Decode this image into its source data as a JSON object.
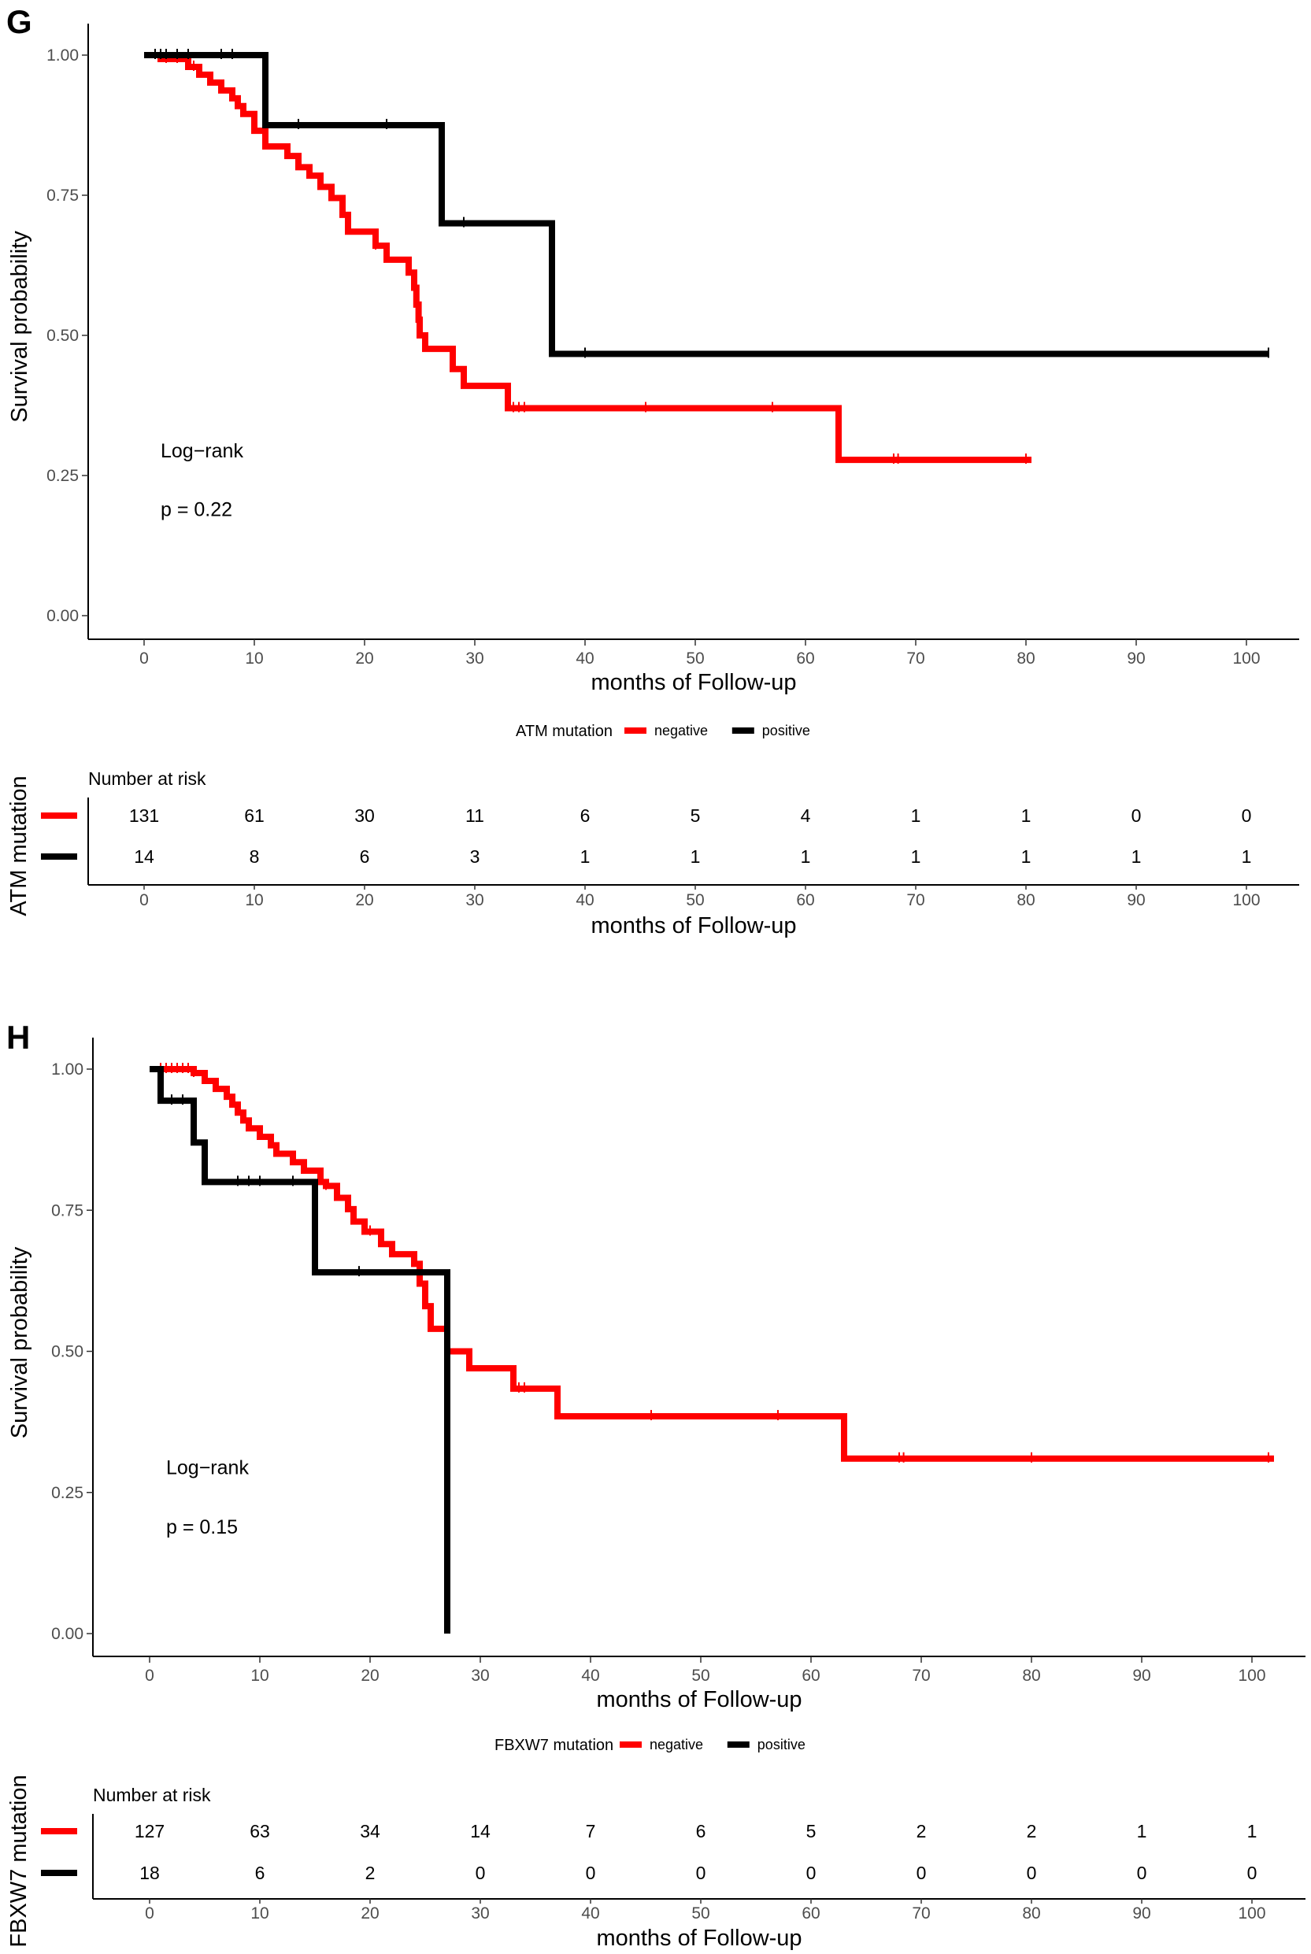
{
  "chart_data": [
    {
      "panel_label": "G",
      "type": "kaplan-meier",
      "xlabel": "months of Follow-up",
      "ylabel": "Survival probability",
      "xlim": [
        -5,
        105
      ],
      "ylim": [
        0,
        1
      ],
      "xticks": [
        0,
        10,
        20,
        30,
        40,
        50,
        60,
        70,
        80,
        90,
        100
      ],
      "yticks": [
        "0.00",
        "0.25",
        "0.50",
        "0.75",
        "1.00"
      ],
      "annotation": {
        "line1": "Log−rank",
        "line2": "p = 0.22"
      },
      "legend": {
        "title": "ATM mutation",
        "items": [
          "negative",
          "positive"
        ]
      },
      "risk_table": {
        "title": "Number at risk",
        "ylabel": "ATM mutation",
        "xlabel": "months of Follow-up",
        "rows": [
          [
            "131",
            "61",
            "30",
            "11",
            "6",
            "5",
            "4",
            "1",
            "1",
            "0",
            "0"
          ],
          [
            "14",
            "8",
            "6",
            "3",
            "1",
            "1",
            "1",
            "1",
            "1",
            "1",
            "1"
          ]
        ]
      },
      "series": [
        {
          "name": "negative",
          "color": "#ff0000",
          "steps": [
            [
              0,
              1.0
            ],
            [
              1.5,
              0.993
            ],
            [
              4,
              0.979
            ],
            [
              5,
              0.965
            ],
            [
              6,
              0.951
            ],
            [
              7,
              0.937
            ],
            [
              8,
              0.923
            ],
            [
              8.5,
              0.909
            ],
            [
              9,
              0.895
            ],
            [
              10,
              0.865
            ],
            [
              11,
              0.837
            ],
            [
              13,
              0.82
            ],
            [
              14,
              0.8
            ],
            [
              15,
              0.785
            ],
            [
              16,
              0.765
            ],
            [
              17,
              0.745
            ],
            [
              18,
              0.715
            ],
            [
              18.5,
              0.685
            ],
            [
              21,
              0.66
            ],
            [
              22,
              0.635
            ],
            [
              24,
              0.612
            ],
            [
              24.5,
              0.585
            ],
            [
              24.7,
              0.555
            ],
            [
              24.9,
              0.528
            ],
            [
              25,
              0.5
            ],
            [
              25.5,
              0.476
            ],
            [
              28,
              0.44
            ],
            [
              29,
              0.41
            ],
            [
              33,
              0.37
            ],
            [
              63,
              0.278
            ],
            [
              80.5,
              0.278
            ]
          ],
          "censor": [
            2,
            3,
            4.5,
            21,
            33.5,
            34,
            34.5,
            45.5,
            57,
            68,
            68.4,
            80
          ]
        },
        {
          "name": "positive",
          "color": "#000000",
          "steps": [
            [
              0,
              1.0
            ],
            [
              11,
              0.875
            ],
            [
              27,
              0.7
            ],
            [
              37,
              0.467
            ],
            [
              102,
              0.467
            ]
          ],
          "censor": [
            1,
            1.5,
            2,
            3,
            4,
            7,
            8,
            14,
            22,
            29,
            40,
            102
          ]
        }
      ]
    },
    {
      "panel_label": "H",
      "type": "kaplan-meier",
      "xlabel": "months of Follow-up",
      "ylabel": "Survival probability",
      "xlim": [
        -5,
        105
      ],
      "ylim": [
        0,
        1
      ],
      "xticks": [
        0,
        10,
        20,
        30,
        40,
        50,
        60,
        70,
        80,
        90,
        100
      ],
      "yticks": [
        "0.00",
        "0.25",
        "0.50",
        "0.75",
        "1.00"
      ],
      "annotation": {
        "line1": "Log−rank",
        "line2": "p = 0.15"
      },
      "legend": {
        "title": "FBXW7 mutation",
        "items": [
          "negative",
          "positive"
        ]
      },
      "risk_table": {
        "title": "Number at risk",
        "ylabel": "FBXW7 mutation",
        "xlabel": "months of Follow-up",
        "rows": [
          [
            "127",
            "63",
            "34",
            "14",
            "7",
            "6",
            "5",
            "2",
            "2",
            "1",
            "1"
          ],
          [
            "18",
            "6",
            "2",
            "0",
            "0",
            "0",
            "0",
            "0",
            "0",
            "0",
            "0"
          ]
        ]
      },
      "series": [
        {
          "name": "negative",
          "color": "#ff0000",
          "steps": [
            [
              0,
              1.0
            ],
            [
              4,
              0.993
            ],
            [
              5,
              0.979
            ],
            [
              6,
              0.965
            ],
            [
              7,
              0.951
            ],
            [
              7.5,
              0.937
            ],
            [
              8,
              0.923
            ],
            [
              8.5,
              0.909
            ],
            [
              9,
              0.895
            ],
            [
              10,
              0.88
            ],
            [
              11,
              0.865
            ],
            [
              11.5,
              0.85
            ],
            [
              13,
              0.835
            ],
            [
              14,
              0.82
            ],
            [
              15.5,
              0.8
            ],
            [
              16,
              0.793
            ],
            [
              17,
              0.772
            ],
            [
              18,
              0.752
            ],
            [
              18.5,
              0.73
            ],
            [
              19.5,
              0.712
            ],
            [
              21,
              0.69
            ],
            [
              22,
              0.672
            ],
            [
              24,
              0.655
            ],
            [
              24.5,
              0.62
            ],
            [
              25,
              0.58
            ],
            [
              25.5,
              0.54
            ],
            [
              27,
              0.5
            ],
            [
              29,
              0.47
            ],
            [
              33,
              0.434
            ],
            [
              37,
              0.385
            ],
            [
              63,
              0.31
            ],
            [
              102,
              0.31
            ]
          ],
          "censor": [
            1,
            1.5,
            2,
            2.5,
            3,
            3.5,
            4,
            16,
            20,
            33.5,
            34,
            45.5,
            57,
            68,
            68.4,
            80,
            101.5
          ]
        },
        {
          "name": "positive",
          "color": "#000000",
          "steps": [
            [
              0,
              1.0
            ],
            [
              1,
              0.944
            ],
            [
              4,
              0.87
            ],
            [
              5,
              0.8
            ],
            [
              15,
              0.64
            ],
            [
              27,
              0.0
            ]
          ],
          "censor": [
            2,
            3,
            8,
            9,
            10,
            13,
            19
          ]
        }
      ]
    }
  ]
}
